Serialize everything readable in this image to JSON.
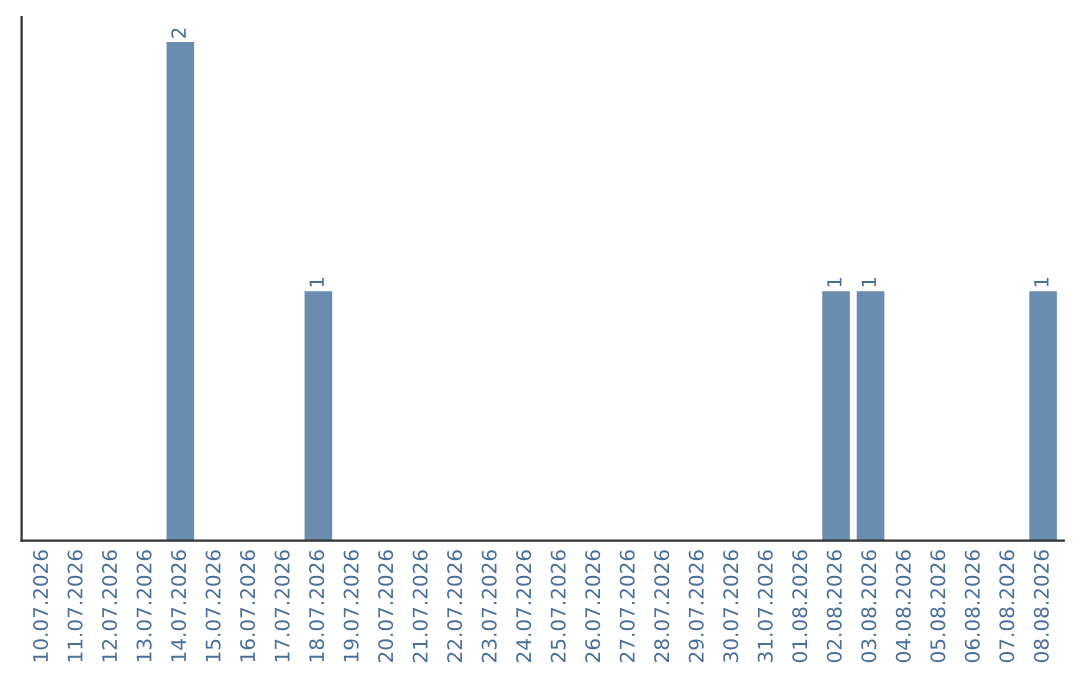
{
  "chart_data": {
    "type": "bar",
    "categories": [
      "10.07.2026",
      "11.07.2026",
      "12.07.2026",
      "13.07.2026",
      "14.07.2026",
      "15.07.2026",
      "16.07.2026",
      "17.07.2026",
      "18.07.2026",
      "19.07.2026",
      "20.07.2026",
      "21.07.2026",
      "22.07.2026",
      "23.07.2026",
      "24.07.2026",
      "25.07.2026",
      "26.07.2026",
      "27.07.2026",
      "28.07.2026",
      "29.07.2026",
      "30.07.2026",
      "31.07.2026",
      "01.08.2026",
      "02.08.2026",
      "03.08.2026",
      "04.08.2026",
      "05.08.2026",
      "06.08.2026",
      "07.08.2026",
      "08.08.2026"
    ],
    "values": [
      0,
      0,
      0,
      0,
      2,
      0,
      0,
      0,
      1,
      0,
      0,
      0,
      0,
      0,
      0,
      0,
      0,
      0,
      0,
      0,
      0,
      0,
      0,
      1,
      1,
      0,
      0,
      0,
      0,
      1
    ],
    "value_labels": [
      null,
      null,
      null,
      null,
      "2",
      null,
      null,
      null,
      "1",
      null,
      null,
      null,
      null,
      null,
      null,
      null,
      null,
      null,
      null,
      null,
      null,
      null,
      null,
      "1",
      "1",
      null,
      null,
      null,
      null,
      "1"
    ],
    "color": "#6a8caf",
    "tick_labels": "x",
    "grid": false,
    "legend": false
  }
}
